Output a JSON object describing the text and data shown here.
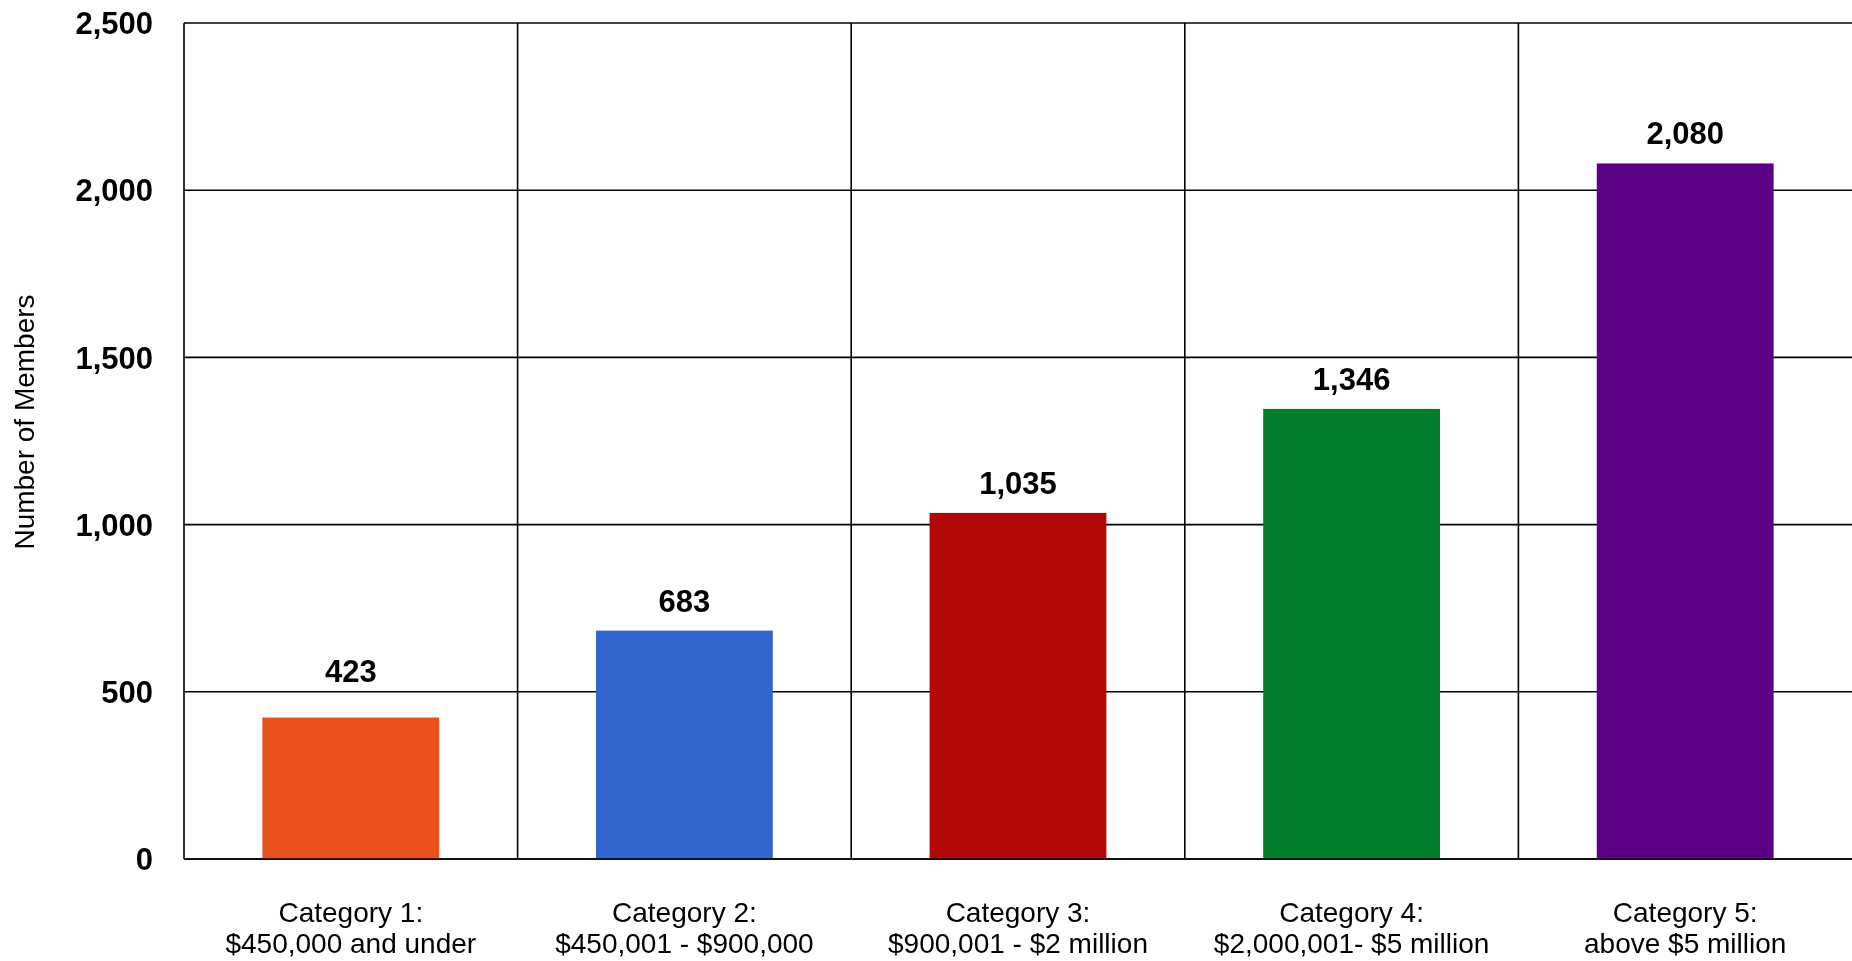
{
  "chart_data": {
    "type": "bar",
    "ylabel": "Number of Members",
    "categories": [
      "Category 1:\n$450,000 and under",
      "Category 2:\n$450,001 - $900,000",
      "Category 3:\n$900,001 - $2 million",
      "Category 4:\n$2,000,001- $5 million",
      "Category 5:\nabove $5 million"
    ],
    "values": [
      423,
      683,
      1035,
      1346,
      2080
    ],
    "colors": [
      "#e8511a",
      "#3366cc",
      "#b10808",
      "#017d2b",
      "#5b0087"
    ],
    "value_labels": [
      "423",
      "683",
      "1,035",
      "1,346",
      "2,080"
    ],
    "ylim": [
      0,
      2500
    ],
    "yticks": [
      0,
      500,
      {
        "value": 1000,
        "label": "1,000"
      },
      {
        "value": 1500,
        "label": "1,500"
      },
      {
        "value": 2000,
        "label": "2,000"
      },
      {
        "value": 2500,
        "label": "2,500"
      }
    ],
    "grid": true
  }
}
